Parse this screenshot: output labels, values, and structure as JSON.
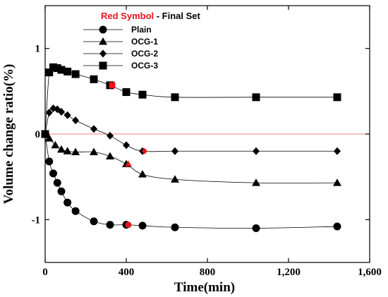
{
  "chart_data": {
    "type": "line",
    "xlabel": "Time(min)",
    "ylabel": "Volume change ratio(%)",
    "xlim": [
      0,
      1600
    ],
    "ylim": [
      -1.5,
      1.5
    ],
    "x_ticks": [
      0,
      400,
      800,
      1200,
      1600
    ],
    "x_tick_labels": [
      "0",
      "400",
      "800",
      "1,200",
      "1,600"
    ],
    "y_ticks": [
      -1,
      0,
      1
    ],
    "y_tick_labels": [
      "-1",
      "0",
      "1"
    ],
    "legend": {
      "placement": "top-left",
      "title_red": "Red Symbol",
      "title_rest": " - Final Set"
    },
    "reference_line": {
      "y": 0,
      "color": "#f08080"
    },
    "final_set_color": "#e8141b",
    "series": [
      {
        "name": "Plain",
        "marker": "circle",
        "final_set_index": 9,
        "x": [
          0,
          20,
          40,
          60,
          80,
          110,
          150,
          240,
          320,
          400,
          480,
          640,
          1040,
          1440
        ],
        "y": [
          0.0,
          -0.32,
          -0.46,
          -0.57,
          -0.67,
          -0.8,
          -0.9,
          -1.02,
          -1.06,
          -1.06,
          -1.07,
          -1.09,
          -1.1,
          -1.08
        ]
      },
      {
        "name": "OCG-1",
        "marker": "triangle",
        "final_set_index": 8,
        "x": [
          0,
          20,
          50,
          80,
          110,
          150,
          240,
          320,
          400,
          480,
          640,
          1040,
          1440
        ],
        "y": [
          0.0,
          -0.05,
          -0.13,
          -0.18,
          -0.2,
          -0.21,
          -0.21,
          -0.26,
          -0.35,
          -0.47,
          -0.53,
          -0.57,
          -0.57
        ]
      },
      {
        "name": "OCG-2",
        "marker": "diamond",
        "final_set_index": 10,
        "x": [
          0,
          20,
          40,
          60,
          80,
          110,
          150,
          240,
          320,
          400,
          480,
          640,
          1040,
          1440
        ],
        "y": [
          0.0,
          0.25,
          0.3,
          0.29,
          0.26,
          0.22,
          0.16,
          0.06,
          -0.02,
          -0.13,
          -0.2,
          -0.2,
          -0.2,
          -0.2
        ]
      },
      {
        "name": "OCG-3",
        "marker": "square",
        "final_set_index": 8,
        "x": [
          0,
          20,
          40,
          60,
          80,
          110,
          150,
          240,
          320,
          400,
          480,
          640,
          1040,
          1440
        ],
        "y": [
          0.0,
          0.72,
          0.78,
          0.77,
          0.75,
          0.73,
          0.7,
          0.64,
          0.57,
          0.49,
          0.46,
          0.43,
          0.43,
          0.43
        ]
      }
    ]
  }
}
